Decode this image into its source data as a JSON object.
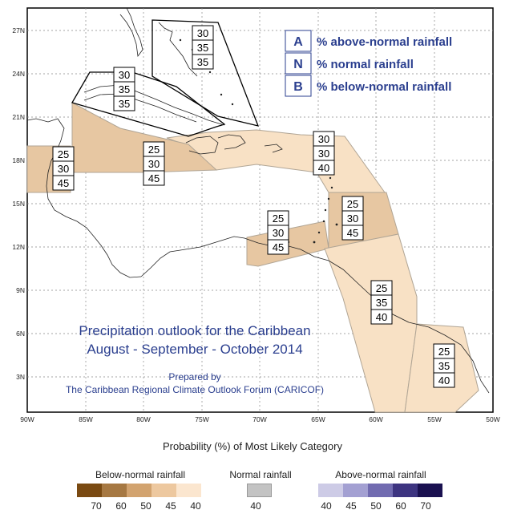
{
  "map": {
    "x_ticks": [
      "90W",
      "85W",
      "80W",
      "75W",
      "70W",
      "65W",
      "60W",
      "55W",
      "50W"
    ],
    "y_ticks": [
      "27N",
      "24N",
      "21N",
      "18N",
      "15N",
      "12N",
      "9N",
      "6N",
      "3N"
    ],
    "key": [
      {
        "letter": "A",
        "text": "% above-normal rainfall"
      },
      {
        "letter": "N",
        "text": "% normal rainfall"
      },
      {
        "letter": "B",
        "text": "% below-normal rainfall"
      }
    ],
    "title_line1": "Precipitation outlook for the Caribbean",
    "title_line2": "August - September - October 2014",
    "prepared_line1": "Prepared by",
    "prepared_line2": "The Caribbean Regional Climate Outlook Forum (CARICOF)",
    "key_color": "#2b3f8f",
    "zones": [
      {
        "name": "bahamas",
        "probs": [
          "30",
          "35",
          "35"
        ],
        "fill": "none"
      },
      {
        "name": "cuba",
        "probs": [
          "30",
          "35",
          "35"
        ],
        "fill": "none"
      },
      {
        "name": "belize",
        "probs": [
          "25",
          "30",
          "45"
        ],
        "fill": "#e7c7a2"
      },
      {
        "name": "jamaica",
        "probs": [
          "25",
          "30",
          "45"
        ],
        "fill": "#e7c7a2"
      },
      {
        "name": "greater-antilles",
        "probs": [
          "30",
          "30",
          "40"
        ],
        "fill": "#f8e1c5"
      },
      {
        "name": "leeward-islands",
        "probs": [
          "25",
          "30",
          "45"
        ],
        "fill": "#e7c7a2"
      },
      {
        "name": "abc-islands",
        "probs": [
          "25",
          "30",
          "45"
        ],
        "fill": "#e7c7a2"
      },
      {
        "name": "trinidad-guyana",
        "probs": [
          "25",
          "35",
          "40"
        ],
        "fill": "#f8e1c5"
      },
      {
        "name": "suriname-guiana",
        "probs": [
          "25",
          "35",
          "40"
        ],
        "fill": "#f8e1c5"
      }
    ]
  },
  "legend": {
    "heading": "Probability (%) of Most Likely Category",
    "below": {
      "label": "Below-normal rainfall",
      "colors": [
        "#7a4a12",
        "#a67842",
        "#d2a36f",
        "#edc89f",
        "#fbe6cf"
      ],
      "values": [
        "70",
        "60",
        "50",
        "45",
        "40"
      ]
    },
    "normal": {
      "label": "Normal rainfall",
      "colors": [
        "#c3c3c3"
      ],
      "values": [
        "40"
      ]
    },
    "above": {
      "label": "Above-normal rainfall",
      "colors": [
        "#cdcbe6",
        "#a3a0d2",
        "#716bb0",
        "#3d3480",
        "#1a1150"
      ],
      "values": [
        "40",
        "45",
        "50",
        "60",
        "70"
      ]
    }
  }
}
